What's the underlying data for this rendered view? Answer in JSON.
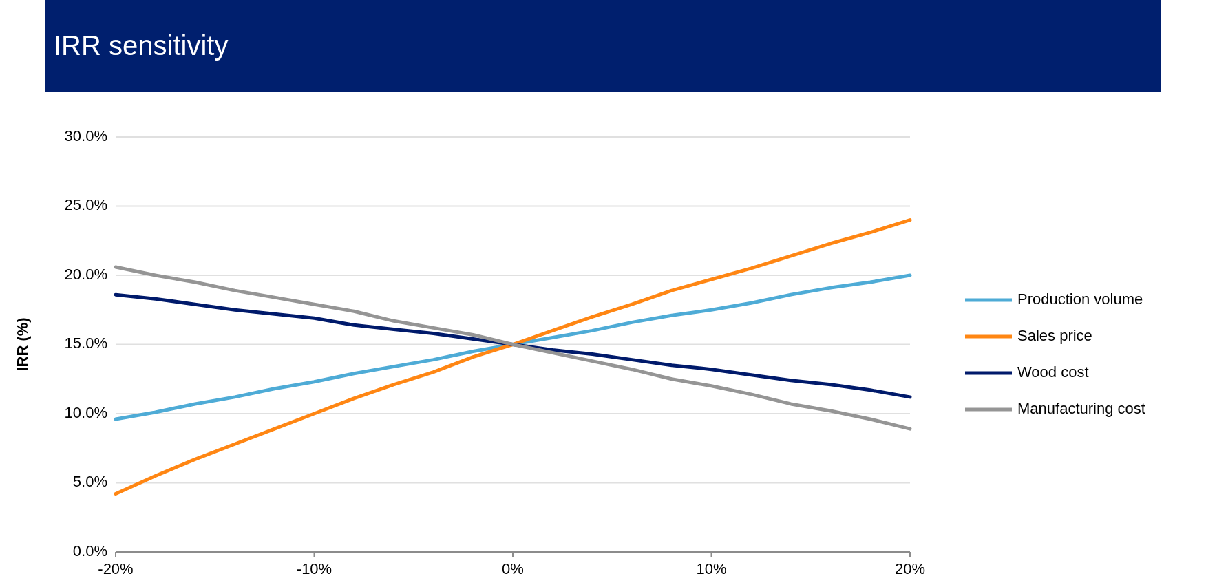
{
  "chart_data": {
    "type": "line",
    "title": "IRR sensitivity",
    "ylabel": "IRR (%)",
    "x": [
      -20,
      -18,
      -16,
      -14,
      -12,
      -10,
      -8,
      -6,
      -4,
      -2,
      0,
      2,
      4,
      6,
      8,
      10,
      12,
      14,
      16,
      18,
      20
    ],
    "series": [
      {
        "name": "Production volume",
        "color": "#4eabd6",
        "values": [
          9.6,
          10.1,
          10.7,
          11.2,
          11.8,
          12.3,
          12.9,
          13.4,
          13.9,
          14.5,
          15.0,
          15.5,
          16.0,
          16.6,
          17.1,
          17.5,
          18.0,
          18.6,
          19.1,
          19.5,
          20.0
        ]
      },
      {
        "name": "Sales price",
        "color": "#ff8613",
        "values": [
          4.2,
          5.5,
          6.7,
          7.8,
          8.9,
          10.0,
          11.1,
          12.1,
          13.0,
          14.1,
          15.0,
          16.0,
          17.0,
          17.9,
          18.9,
          19.7,
          20.5,
          21.4,
          22.3,
          23.1,
          24.0
        ]
      },
      {
        "name": "Wood cost",
        "color": "#001a6b",
        "values": [
          18.6,
          18.3,
          17.9,
          17.5,
          17.2,
          16.9,
          16.4,
          16.1,
          15.8,
          15.4,
          15.0,
          14.6,
          14.3,
          13.9,
          13.5,
          13.2,
          12.8,
          12.4,
          12.1,
          11.7,
          11.2
        ]
      },
      {
        "name": "Manufacturing cost",
        "color": "#959595",
        "values": [
          20.6,
          20.0,
          19.5,
          18.9,
          18.4,
          17.9,
          17.4,
          16.7,
          16.2,
          15.7,
          15.0,
          14.4,
          13.8,
          13.2,
          12.5,
          12.0,
          11.4,
          10.7,
          10.2,
          9.6,
          8.9
        ]
      }
    ],
    "xlim": [
      -20,
      20
    ],
    "xticks": [
      {
        "value": -20,
        "label": "-20%"
      },
      {
        "value": -10,
        "label": "-10%"
      },
      {
        "value": 0,
        "label": "0%"
      },
      {
        "value": 10,
        "label": "10%"
      },
      {
        "value": 20,
        "label": "20%"
      }
    ],
    "ylim": [
      0,
      30
    ],
    "yticks": [
      {
        "value": 0,
        "label": "0.0%"
      },
      {
        "value": 5,
        "label": "5.0%"
      },
      {
        "value": 10,
        "label": "10.0%"
      },
      {
        "value": 15,
        "label": "15.0%"
      },
      {
        "value": 20,
        "label": "20.0%"
      },
      {
        "value": 25,
        "label": "25.0%"
      },
      {
        "value": 30,
        "label": "30.0%"
      }
    ],
    "grid": "y",
    "legend": "right",
    "marker": "none",
    "line_style": "solid"
  }
}
